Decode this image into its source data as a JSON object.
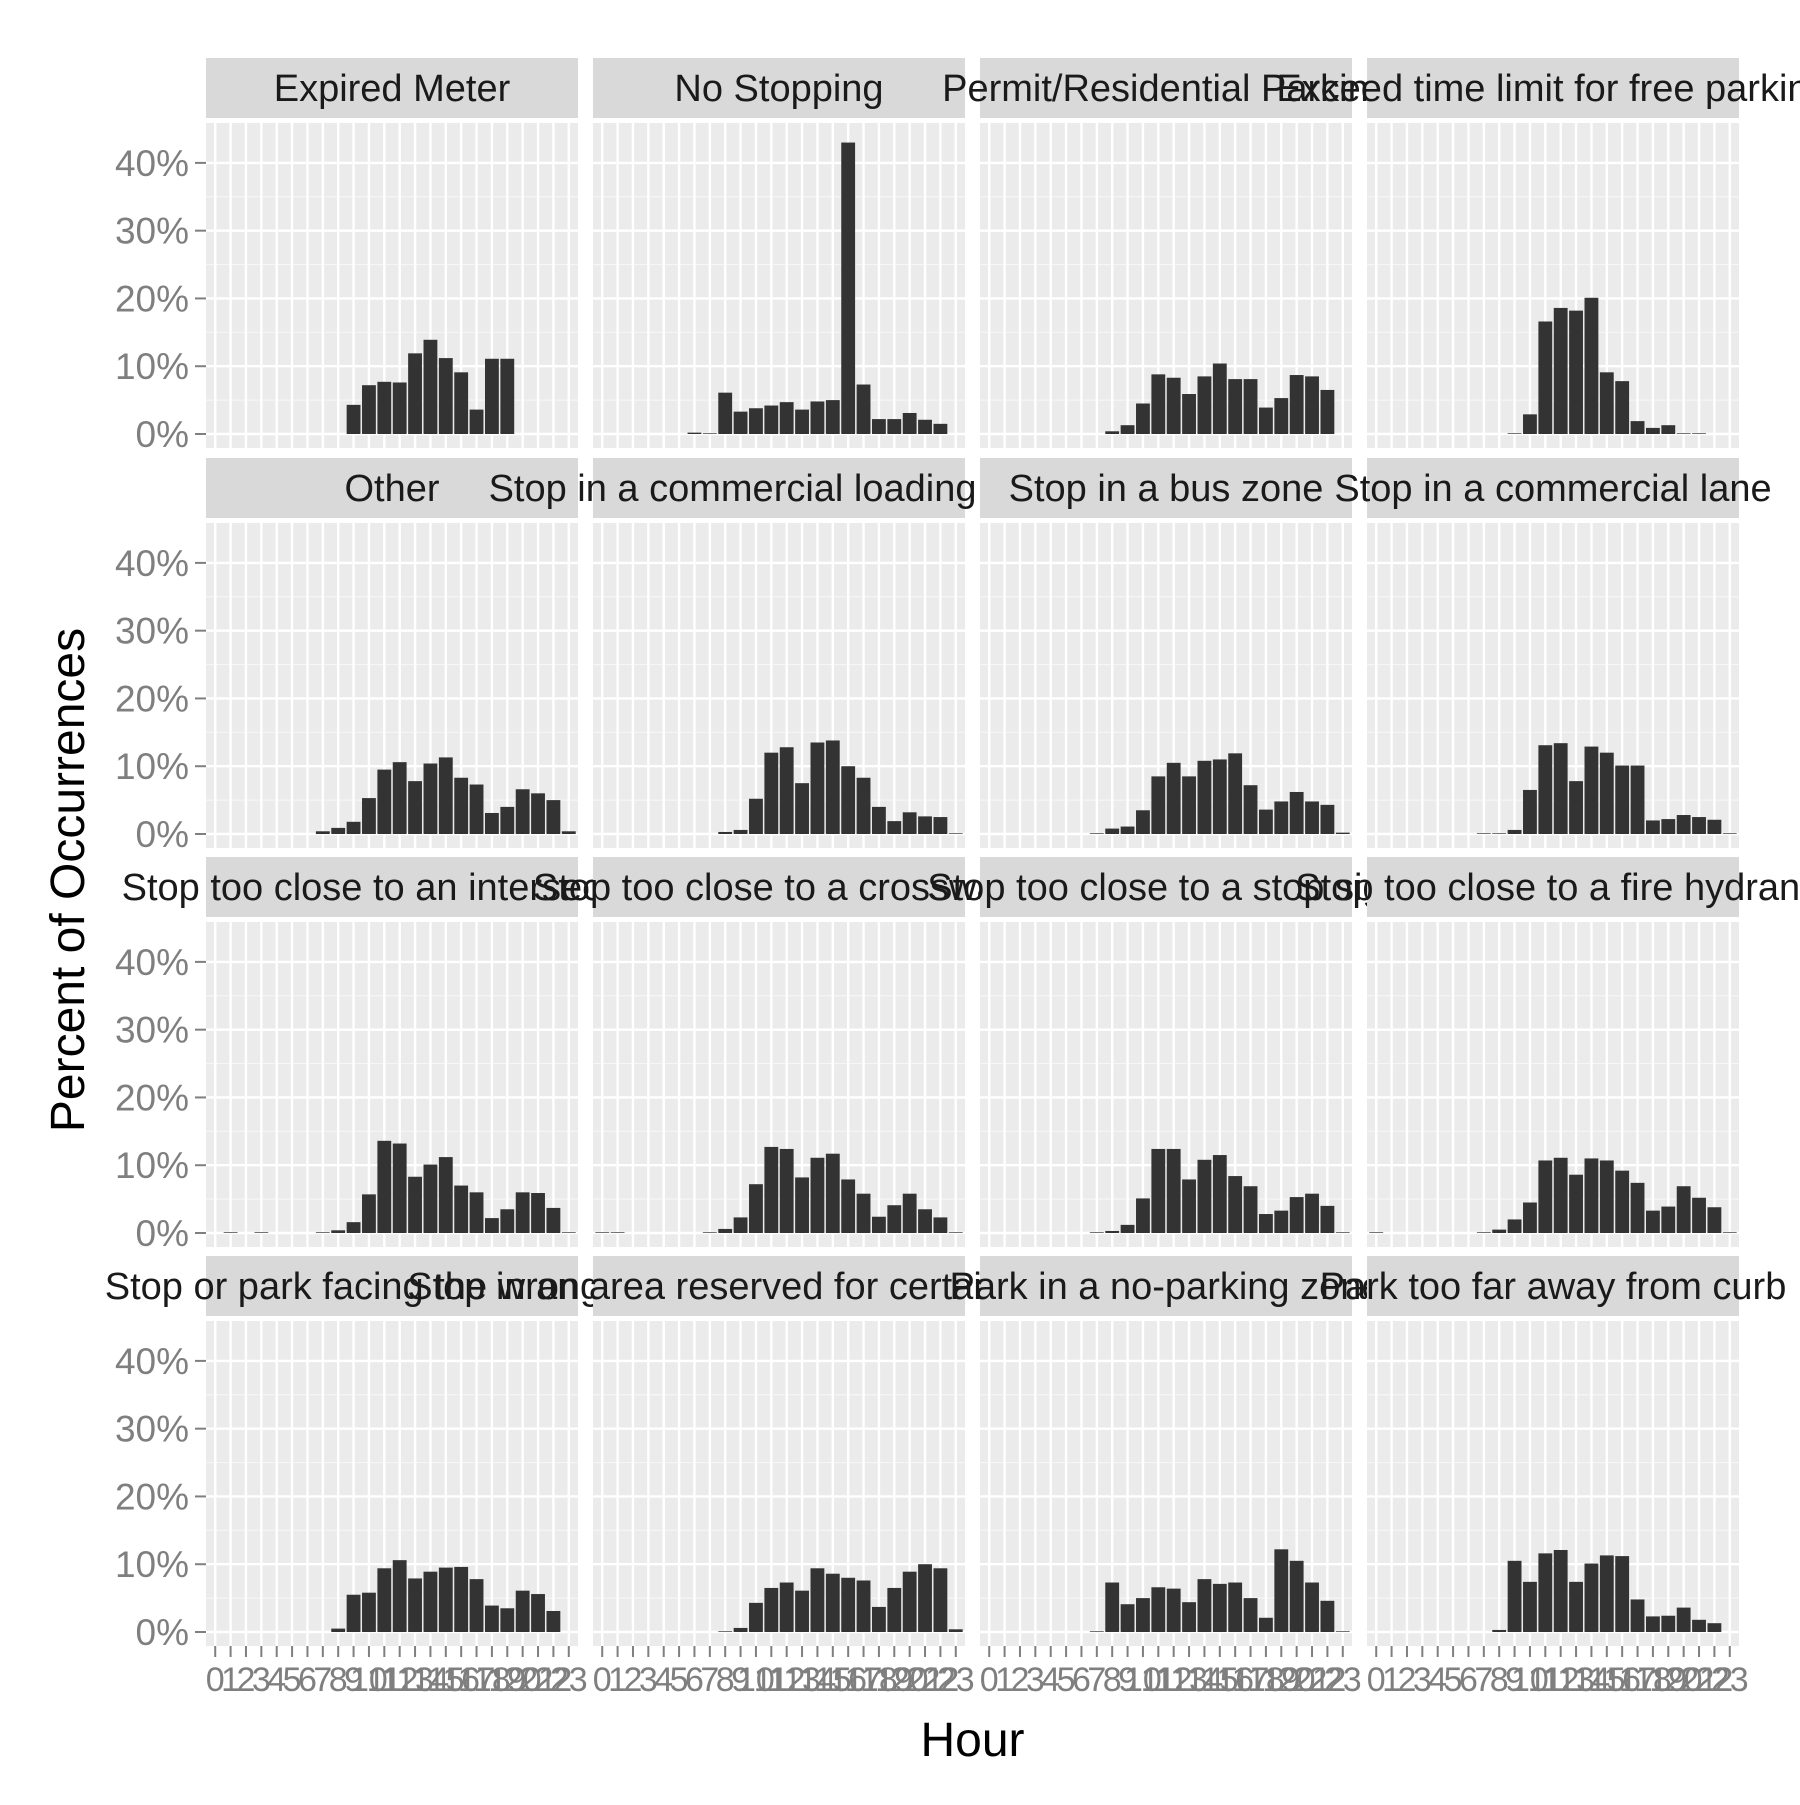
{
  "chart_data": {
    "type": "bar",
    "xlabel": "Hour",
    "ylabel": "Percent of Occurrences",
    "ylim": [
      0,
      45
    ],
    "y_ticks": [
      0,
      10,
      20,
      30,
      40
    ],
    "y_tick_labels": [
      "0%",
      "10%",
      "20%",
      "30%",
      "40%"
    ],
    "x_categories": [
      "0",
      "1",
      "2",
      "3",
      "4",
      "5",
      "6",
      "7",
      "8",
      "9",
      "10",
      "11",
      "12",
      "13",
      "14",
      "15",
      "16",
      "17",
      "18",
      "19",
      "20",
      "21",
      "22",
      "23"
    ],
    "grid": true,
    "layout": "facet grid, 4 rows x 4 columns",
    "colors": {
      "bar": "#333333",
      "panel": "#ebebeb",
      "strip": "#d9d9d9",
      "grid": "#ffffff"
    },
    "facets": [
      {
        "label": "Expired Meter",
        "values": [
          0,
          0,
          0,
          0,
          0,
          0,
          0,
          0,
          0,
          4.3,
          7.2,
          7.7,
          7.6,
          11.9,
          13.9,
          11.2,
          9.1,
          3.6,
          11.1,
          11.1,
          0,
          0,
          0,
          0
        ]
      },
      {
        "label": "No Stopping",
        "values": [
          0,
          0,
          0,
          0,
          0,
          0,
          0.2,
          0.1,
          6.1,
          3.3,
          3.8,
          4.2,
          4.7,
          3.6,
          4.8,
          5.0,
          43.0,
          7.3,
          2.2,
          2.2,
          3.1,
          2.1,
          1.5,
          0
        ]
      },
      {
        "label": "Permit/Residential Parking",
        "values": [
          0,
          0,
          0,
          0,
          0,
          0,
          0,
          0,
          0.4,
          1.3,
          4.5,
          8.8,
          8.3,
          5.9,
          8.5,
          10.4,
          8.1,
          8.1,
          3.9,
          5.3,
          8.7,
          8.5,
          6.5,
          0
        ]
      },
      {
        "label": "Exceed time limit for free parking",
        "values": [
          0,
          0,
          0,
          0,
          0,
          0,
          0,
          0,
          0,
          0.1,
          2.9,
          16.6,
          18.6,
          18.2,
          20.1,
          9.1,
          7.8,
          1.9,
          0.9,
          1.3,
          0.1,
          0.1,
          0,
          0
        ]
      },
      {
        "label": "Other",
        "values": [
          0,
          0,
          0,
          0,
          0,
          0,
          0,
          0.4,
          0.9,
          1.8,
          5.3,
          9.5,
          10.6,
          7.8,
          10.4,
          11.3,
          8.3,
          7.3,
          3.1,
          4.0,
          6.6,
          6.0,
          5.0,
          0.4
        ]
      },
      {
        "label": "Stop in a commercial loading zone",
        "values": [
          0,
          0,
          0,
          0,
          0,
          0,
          0,
          0,
          0.3,
          0.6,
          5.2,
          12.0,
          12.8,
          7.5,
          13.5,
          13.8,
          10.0,
          8.3,
          4.0,
          1.9,
          3.2,
          2.6,
          2.5,
          0.1
        ]
      },
      {
        "label": "Stop in a bus zone",
        "values": [
          0,
          0,
          0,
          0,
          0,
          0,
          0,
          0.1,
          0.8,
          1.1,
          3.5,
          8.5,
          10.5,
          8.5,
          10.8,
          11.0,
          11.9,
          7.2,
          3.6,
          4.8,
          6.2,
          4.8,
          4.3,
          0.2
        ]
      },
      {
        "label": "Stop in a commercial lane",
        "values": [
          0,
          0,
          0,
          0,
          0,
          0,
          0,
          0.1,
          0.1,
          0.6,
          6.5,
          13.1,
          13.4,
          7.8,
          12.9,
          12.0,
          10.1,
          10.1,
          2.0,
          2.2,
          2.8,
          2.5,
          2.1,
          0.1
        ]
      },
      {
        "label": "Stop too close to an intersection",
        "values": [
          0,
          0.1,
          0,
          0.1,
          0,
          0,
          0,
          0.1,
          0.4,
          1.6,
          5.7,
          13.6,
          13.2,
          8.3,
          10.1,
          11.2,
          7.0,
          6.0,
          2.2,
          3.5,
          6.0,
          5.9,
          3.7,
          0.1
        ]
      },
      {
        "label": "Stop too close to a crosswalk",
        "values": [
          0.1,
          0.1,
          0,
          0,
          0,
          0,
          0,
          0.1,
          0.6,
          2.3,
          7.2,
          12.7,
          12.4,
          8.2,
          11.1,
          11.7,
          7.9,
          5.8,
          2.4,
          4.1,
          5.8,
          3.5,
          2.3,
          0.1
        ]
      },
      {
        "label": "Stop too close to a stop sign",
        "values": [
          0,
          0,
          0,
          0,
          0,
          0,
          0,
          0.1,
          0.3,
          1.2,
          5.1,
          12.4,
          12.4,
          7.9,
          10.8,
          11.5,
          8.4,
          6.9,
          2.8,
          3.3,
          5.3,
          5.8,
          4.0,
          0.1
        ]
      },
      {
        "label": "Stop too close to a fire hydrant",
        "values": [
          0.1,
          0,
          0,
          0,
          0,
          0,
          0,
          0.1,
          0.5,
          2.0,
          4.5,
          10.7,
          11.1,
          8.6,
          11.0,
          10.7,
          9.2,
          7.4,
          3.3,
          3.9,
          6.9,
          5.2,
          3.8,
          0.1
        ]
      },
      {
        "label": "Stop or park facing the wrong way",
        "values": [
          0,
          0,
          0,
          0,
          0,
          0,
          0,
          0,
          0.5,
          5.5,
          5.8,
          9.4,
          10.6,
          7.9,
          8.9,
          9.5,
          9.6,
          7.8,
          3.9,
          3.5,
          6.1,
          5.6,
          3.1,
          0
        ]
      },
      {
        "label": "Stop in an area reserved for certain vehicles",
        "values": [
          0,
          0,
          0,
          0,
          0,
          0,
          0,
          0,
          0.1,
          0.6,
          4.3,
          6.5,
          7.3,
          6.1,
          9.4,
          8.6,
          8.0,
          7.6,
          3.7,
          6.5,
          8.9,
          10.0,
          9.4,
          0.4
        ]
      },
      {
        "label": "Park in a no-parking zone",
        "values": [
          0,
          0,
          0,
          0,
          0,
          0,
          0,
          0.1,
          7.3,
          4.1,
          5.0,
          6.6,
          6.4,
          4.4,
          7.8,
          7.1,
          7.3,
          5.0,
          2.1,
          12.2,
          10.5,
          7.3,
          4.6,
          0.1
        ]
      },
      {
        "label": "Park too far away from curb",
        "values": [
          0,
          0,
          0,
          0,
          0,
          0,
          0,
          0,
          0.3,
          10.5,
          7.4,
          11.6,
          12.1,
          7.4,
          10.1,
          11.3,
          11.2,
          4.8,
          2.3,
          2.4,
          3.6,
          1.8,
          1.3,
          0
        ]
      }
    ]
  }
}
